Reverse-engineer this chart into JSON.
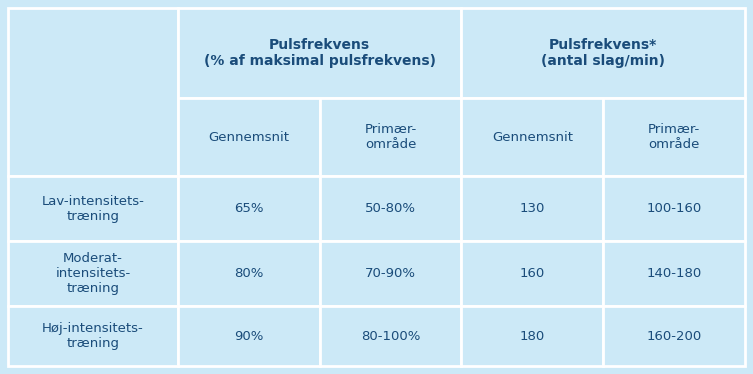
{
  "bg_color": "#cce9f7",
  "border_color": "#ffffff",
  "text_color": "#1a4c7a",
  "col_header1": "Pulsfrekvens\n(% af maksimal pulsfrekvens)",
  "col_header2": "Pulsfrekvens*\n(antal slag/min)",
  "sub_headers": [
    "Gennemsnit",
    "Primær-\nområde",
    "Gennemsnit",
    "Primær-\nområde"
  ],
  "row_labels": [
    "Lav-intensitets-\ntræning",
    "Moderat-\nintensitets-\ntræning",
    "Høj-intensitets-\ntræning"
  ],
  "data": [
    [
      "65%",
      "50-80%",
      "130",
      "100-160"
    ],
    [
      "80%",
      "70-90%",
      "160",
      "140-180"
    ],
    [
      "90%",
      "80-100%",
      "180",
      "160-200"
    ]
  ],
  "figsize": [
    7.53,
    3.74
  ],
  "dpi": 100
}
